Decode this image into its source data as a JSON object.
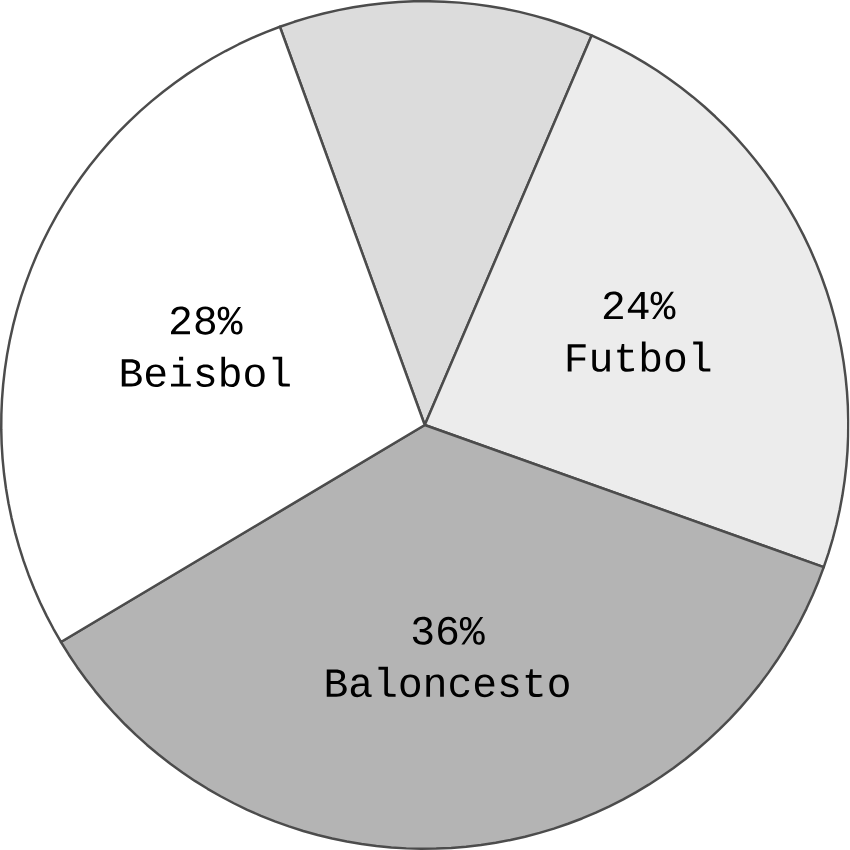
{
  "chart_data": {
    "type": "pie",
    "categories": [
      null,
      "Futbol",
      "Baloncesto",
      "Beisbol"
    ],
    "values": [
      12,
      24,
      36,
      28
    ],
    "value_labels": [
      null,
      "24%",
      "36%",
      "28%"
    ],
    "colors": [
      "#dcdcdc",
      "#ececec",
      "#b4b4b4",
      "#ffffff"
    ]
  }
}
